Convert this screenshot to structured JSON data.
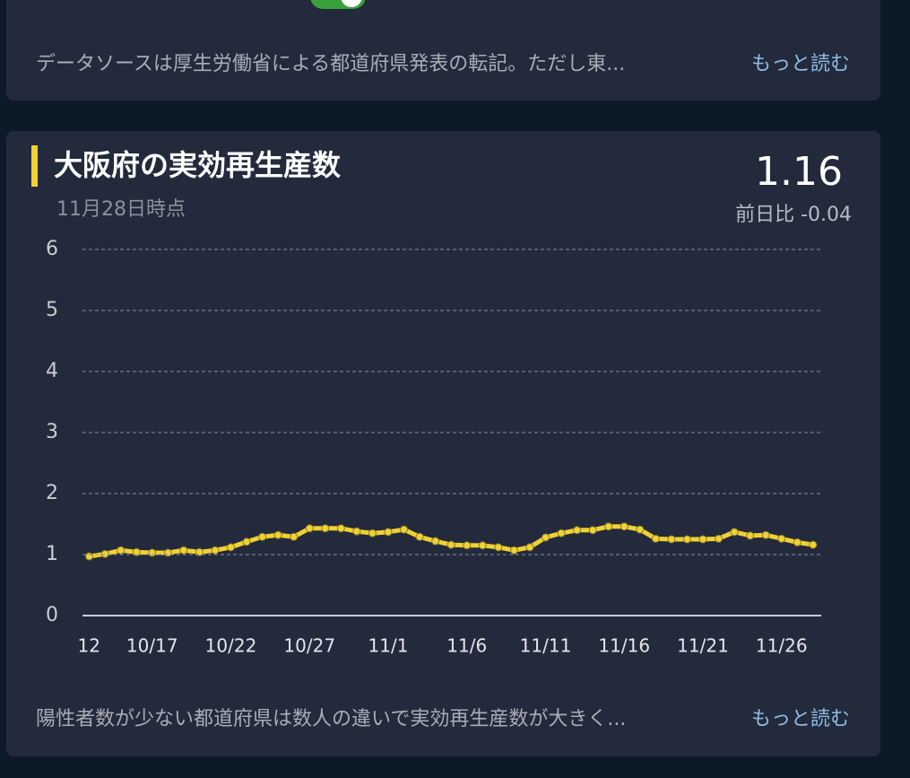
{
  "top_card": {
    "text": "データソースは厚生労働省による都道府県発表の転記。ただし東...",
    "link": "もっと読む"
  },
  "chart_card": {
    "title": "大阪府の実効再生産数",
    "subtitle": "11月28日時点",
    "value": "1.16",
    "change": "前日比 -0.04",
    "footer": "陽性者数が少ない都道府県は数人の違いで実効再生産数が大きく...",
    "link": "もっと読む"
  },
  "chart_data": {
    "type": "line",
    "categories": [
      "12",
      null,
      null,
      null,
      null,
      "10/17",
      null,
      null,
      null,
      null,
      "10/22",
      null,
      null,
      null,
      null,
      "10/27",
      null,
      null,
      null,
      null,
      "11/1",
      null,
      null,
      null,
      null,
      "11/6",
      null,
      null,
      null,
      null,
      "11/11",
      null,
      null,
      null,
      null,
      "11/16",
      null,
      null,
      null,
      null,
      "11/21",
      null,
      null,
      null,
      null,
      "11/26",
      null,
      null
    ],
    "values": [
      null,
      0.97,
      1.01,
      1.07,
      1.04,
      1.03,
      1.03,
      1.07,
      1.04,
      1.07,
      1.12,
      1.21,
      1.29,
      1.32,
      1.29,
      1.43,
      1.43,
      1.43,
      1.38,
      1.35,
      1.37,
      1.41,
      1.29,
      1.22,
      1.16,
      1.15,
      1.15,
      1.12,
      1.07,
      1.12,
      1.28,
      1.35,
      1.4,
      1.4,
      1.46,
      1.46,
      1.41,
      1.26,
      1.25,
      1.25,
      1.25,
      1.26,
      1.37,
      1.31,
      1.32,
      1.26,
      1.2,
      1.16
    ],
    "color": "#f0d232",
    "ylim": [
      0,
      6
    ],
    "yticks": [
      0,
      1,
      2,
      3,
      4,
      5,
      6
    ],
    "grid": true
  }
}
